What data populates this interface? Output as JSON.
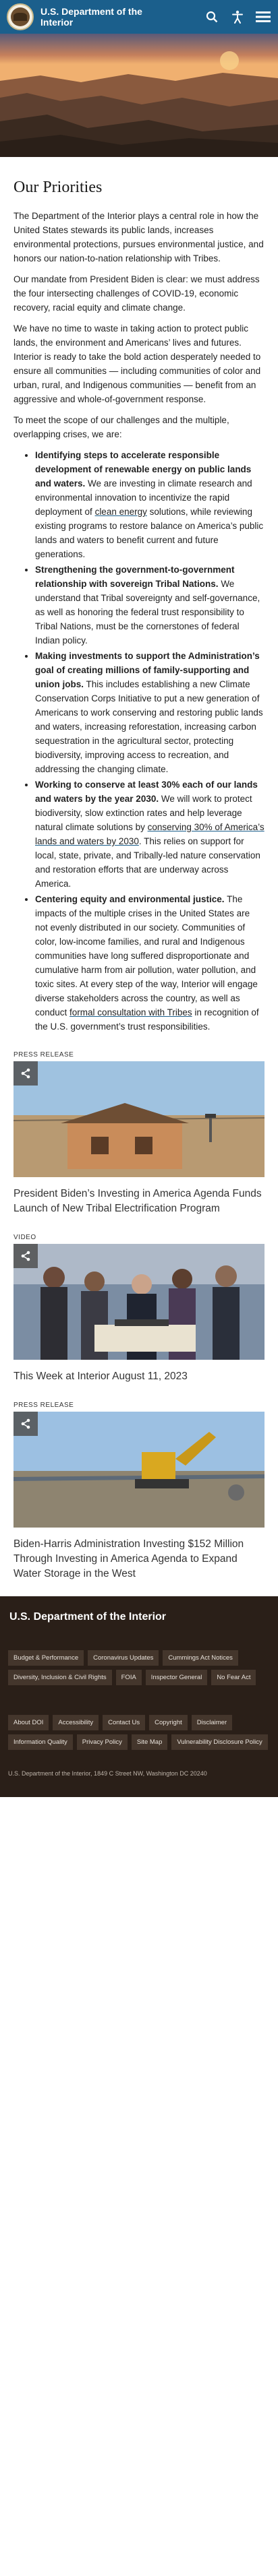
{
  "header": {
    "title": "U.S. Department of the Interior",
    "icons": [
      "search-icon",
      "accessibility-icon",
      "menu-icon"
    ]
  },
  "main": {
    "title": "Our Priorities",
    "paragraphs": [
      "The Department of the Interior plays a central role in how the United States stewards its public lands, increases environmental protections, pursues environmental justice, and honors our nation-to-nation relationship with Tribes.",
      "Our mandate from President Biden is clear: we must address the four intersecting challenges of COVID-19, economic recovery, racial equity and climate change.",
      "We have no time to waste in taking action to protect public lands, the environment and Americans’ lives and futures. Interior is ready to take the bold action desperately needed to ensure all communities — including communities of color and urban, rural, and Indigenous communities — benefit from an aggressive and whole-of-government response.",
      "To meet the scope of our challenges and the multiple, overlapping crises, we are:"
    ],
    "bullets": [
      {
        "lead": "Identifying steps to accelerate responsible development of renewable energy on public lands and waters.",
        "text1": " We are investing in climate research and environmental innovation to incentivize the rapid deployment of ",
        "link": "clean energy",
        "text2": " solutions, while reviewing existing programs to restore balance on America’s public lands and waters to benefit current and future generations."
      },
      {
        "lead": "Strengthening the government-to-government relationship with sovereign Tribal Nations.",
        "text1": " We understand that Tribal sovereignty and self-governance, as well as honoring the federal trust responsibility to Tribal Nations, must be the cornerstones of federal Indian policy.",
        "link": "",
        "text2": ""
      },
      {
        "lead": "Making investments to support the Administration’s goal of creating millions of family-supporting and union jobs.",
        "text1": " This includes establishing a new Climate Conservation Corps Initiative to put a new generation of Americans to work conserving and restoring public lands and waters, increasing reforestation, increasing carbon sequestration in the agricultural sector, protecting biodiversity, improving access to recreation, and addressing the changing climate.",
        "link": "",
        "text2": ""
      },
      {
        "lead": "Working to conserve at least 30% each of our lands and waters by the year 2030.",
        "text1": " We will work to protect biodiversity, slow extinction rates and help leverage natural climate solutions by ",
        "link": "conserving 30% of America’s lands and waters by 2030",
        "text2": ". This relies on support for local, state, private, and Tribally-led nature conservation and restoration efforts that are underway across America."
      },
      {
        "lead": "Centering equity and environmental justice.",
        "text1": " The impacts of the multiple crises in the United States are not evenly distributed in our society. Communities of color, low-income families, and rural and Indigenous communities have long suffered disproportionate and cumulative harm from air pollution, water pollution, and toxic sites. At every step of the way, Interior will engage diverse stakeholders across the country, as well as conduct ",
        "link": "formal consultation with Tribes",
        "text2": " in recognition of the U.S. government’s trust responsibilities."
      }
    ]
  },
  "cards": [
    {
      "type": "PRESS RELEASE",
      "title": "President Biden’s Investing in America Agenda Funds Launch of New Tribal Electrification Program",
      "share_icon": "share-icon"
    },
    {
      "type": "VIDEO",
      "title": "This Week at Interior August 11, 2023",
      "share_icon": "share-icon"
    },
    {
      "type": "PRESS RELEASE",
      "title": "Biden-Harris Administration Investing $152 Million Through Investing in America Agenda to Expand Water Storage in the West",
      "share_icon": "share-icon"
    }
  ],
  "footer": {
    "title": "U.S. Department of the Interior",
    "topic_tags": [
      "Budget & Performance",
      "Coronavirus Updates",
      "Cummings Act Notices",
      "Diversity, Inclusion & Civil Rights",
      "FOIA",
      "Inspector General",
      "No Fear Act"
    ],
    "link_tags": [
      "About DOI",
      "Accessibility",
      "Contact Us",
      "Copyright",
      "Disclaimer",
      "Information Quality",
      "Privacy Policy",
      "Site Map",
      "Vulnerability Disclosure Policy"
    ],
    "address": "U.S. Department of the Interior, 1849 C Street NW, Washington DC 20240"
  },
  "colors": {
    "brand": "#1b5f8c",
    "footer_bg": "#2a1f18",
    "tag_bg": "#44362c"
  }
}
